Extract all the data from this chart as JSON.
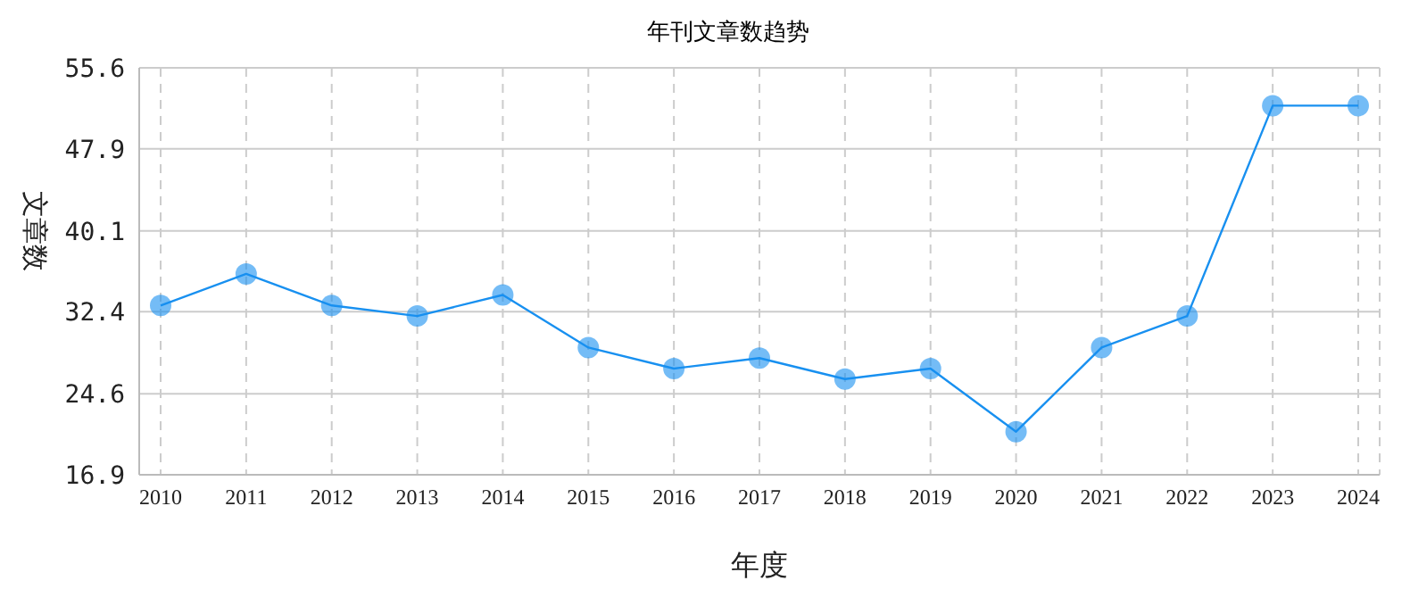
{
  "chart_data": {
    "type": "line",
    "title": "年刊文章数趋势",
    "xlabel": "年度",
    "ylabel": "文章数",
    "categories": [
      "2010",
      "2011",
      "2012",
      "2013",
      "2014",
      "2015",
      "2016",
      "2017",
      "2018",
      "2019",
      "2020",
      "2021",
      "2022",
      "2023",
      "2024"
    ],
    "series": [
      {
        "color": "#1890f0",
        "values": [
          33,
          36,
          33,
          32,
          34,
          29,
          27,
          28,
          26,
          27,
          21,
          29,
          32,
          52,
          52
        ]
      }
    ],
    "ylim": [
      16.9,
      55.6
    ],
    "yticks": [
      16.9,
      24.6,
      32.4,
      40.1,
      47.9,
      55.6
    ],
    "grid": true,
    "marker": "circle",
    "line_style": "solid",
    "legend": false
  }
}
